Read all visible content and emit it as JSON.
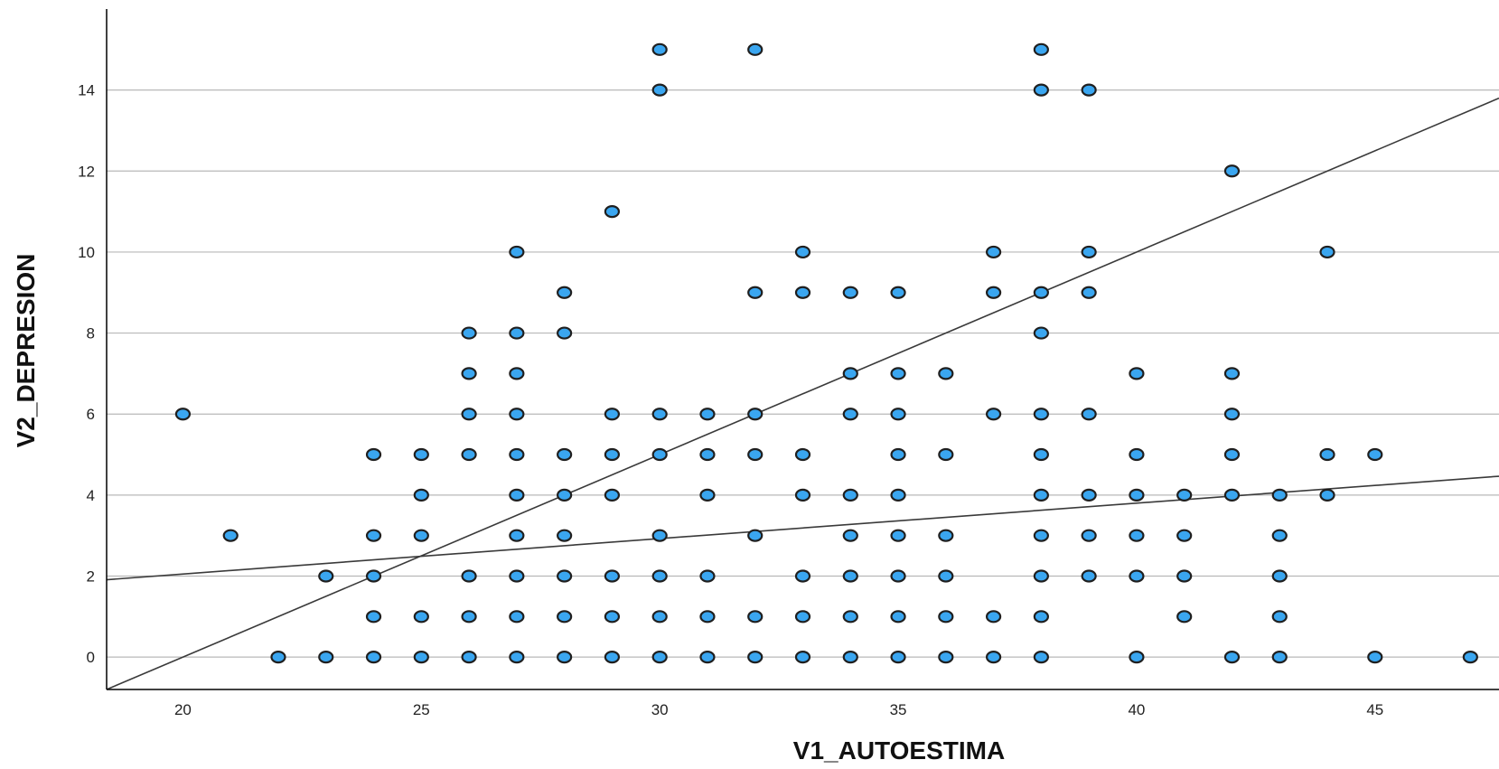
{
  "chart_data": {
    "type": "scatter",
    "title": "",
    "xlabel": "V1_AUTOESTIMA",
    "ylabel": "V2_DEPRESION",
    "xlim": [
      18.4,
      47.6
    ],
    "ylim": [
      -0.8,
      16
    ],
    "x_ticks": [
      20,
      25,
      30,
      35,
      40,
      45
    ],
    "y_ticks": [
      0,
      2,
      4,
      6,
      8,
      10,
      12,
      14
    ],
    "grid": "horizontal",
    "colors": {
      "point_fill": "#3aa6f0",
      "point_edge": "#1f1f1f",
      "line": "#3a3a3a",
      "grid": "#b8b8b8"
    },
    "series": [
      {
        "points": [
          [
            20,
            6
          ],
          [
            21,
            3
          ],
          [
            22,
            0
          ],
          [
            23,
            0
          ],
          [
            23,
            2
          ],
          [
            24,
            0
          ],
          [
            24,
            1
          ],
          [
            24,
            2
          ],
          [
            24,
            3
          ],
          [
            24,
            5
          ],
          [
            25,
            0
          ],
          [
            25,
            1
          ],
          [
            25,
            3
          ],
          [
            25,
            4
          ],
          [
            25,
            5
          ],
          [
            26,
            0
          ],
          [
            26,
            1
          ],
          [
            26,
            2
          ],
          [
            26,
            5
          ],
          [
            26,
            6
          ],
          [
            26,
            7
          ],
          [
            26,
            8
          ],
          [
            27,
            0
          ],
          [
            27,
            1
          ],
          [
            27,
            2
          ],
          [
            27,
            3
          ],
          [
            27,
            4
          ],
          [
            27,
            5
          ],
          [
            27,
            6
          ],
          [
            27,
            7
          ],
          [
            27,
            8
          ],
          [
            27,
            10
          ],
          [
            28,
            0
          ],
          [
            28,
            1
          ],
          [
            28,
            2
          ],
          [
            28,
            3
          ],
          [
            28,
            4
          ],
          [
            28,
            5
          ],
          [
            28,
            8
          ],
          [
            28,
            9
          ],
          [
            29,
            0
          ],
          [
            29,
            1
          ],
          [
            29,
            2
          ],
          [
            29,
            4
          ],
          [
            29,
            5
          ],
          [
            29,
            6
          ],
          [
            29,
            11
          ],
          [
            30,
            0
          ],
          [
            30,
            1
          ],
          [
            30,
            2
          ],
          [
            30,
            3
          ],
          [
            30,
            5
          ],
          [
            30,
            6
          ],
          [
            30,
            14
          ],
          [
            30,
            15
          ],
          [
            31,
            0
          ],
          [
            31,
            1
          ],
          [
            31,
            2
          ],
          [
            31,
            4
          ],
          [
            31,
            5
          ],
          [
            31,
            6
          ],
          [
            32,
            0
          ],
          [
            32,
            1
          ],
          [
            32,
            3
          ],
          [
            32,
            5
          ],
          [
            32,
            6
          ],
          [
            32,
            9
          ],
          [
            32,
            15
          ],
          [
            33,
            0
          ],
          [
            33,
            1
          ],
          [
            33,
            2
          ],
          [
            33,
            4
          ],
          [
            33,
            5
          ],
          [
            33,
            9
          ],
          [
            33,
            10
          ],
          [
            34,
            0
          ],
          [
            34,
            1
          ],
          [
            34,
            2
          ],
          [
            34,
            3
          ],
          [
            34,
            4
          ],
          [
            34,
            6
          ],
          [
            34,
            7
          ],
          [
            34,
            9
          ],
          [
            35,
            0
          ],
          [
            35,
            1
          ],
          [
            35,
            2
          ],
          [
            35,
            3
          ],
          [
            35,
            4
          ],
          [
            35,
            5
          ],
          [
            35,
            6
          ],
          [
            35,
            7
          ],
          [
            35,
            9
          ],
          [
            36,
            0
          ],
          [
            36,
            1
          ],
          [
            36,
            2
          ],
          [
            36,
            3
          ],
          [
            36,
            5
          ],
          [
            36,
            7
          ],
          [
            37,
            0
          ],
          [
            37,
            1
          ],
          [
            37,
            6
          ],
          [
            37,
            9
          ],
          [
            37,
            10
          ],
          [
            38,
            0
          ],
          [
            38,
            1
          ],
          [
            38,
            2
          ],
          [
            38,
            3
          ],
          [
            38,
            4
          ],
          [
            38,
            5
          ],
          [
            38,
            6
          ],
          [
            38,
            8
          ],
          [
            38,
            9
          ],
          [
            38,
            14
          ],
          [
            38,
            15
          ],
          [
            39,
            2
          ],
          [
            39,
            3
          ],
          [
            39,
            4
          ],
          [
            39,
            6
          ],
          [
            39,
            9
          ],
          [
            39,
            10
          ],
          [
            39,
            14
          ],
          [
            40,
            0
          ],
          [
            40,
            2
          ],
          [
            40,
            3
          ],
          [
            40,
            4
          ],
          [
            40,
            5
          ],
          [
            40,
            7
          ],
          [
            41,
            1
          ],
          [
            41,
            2
          ],
          [
            41,
            3
          ],
          [
            41,
            4
          ],
          [
            42,
            0
          ],
          [
            42,
            4
          ],
          [
            42,
            5
          ],
          [
            42,
            6
          ],
          [
            42,
            7
          ],
          [
            42,
            12
          ],
          [
            43,
            0
          ],
          [
            43,
            1
          ],
          [
            43,
            2
          ],
          [
            43,
            3
          ],
          [
            43,
            4
          ],
          [
            44,
            4
          ],
          [
            44,
            5
          ],
          [
            44,
            10
          ],
          [
            45,
            0
          ],
          [
            45,
            5
          ],
          [
            47,
            0
          ]
        ]
      }
    ],
    "fit_lines": [
      {
        "slope": 0.5,
        "intercept": -10
      },
      {
        "slope": 0.0875,
        "intercept": 0.3
      }
    ]
  }
}
